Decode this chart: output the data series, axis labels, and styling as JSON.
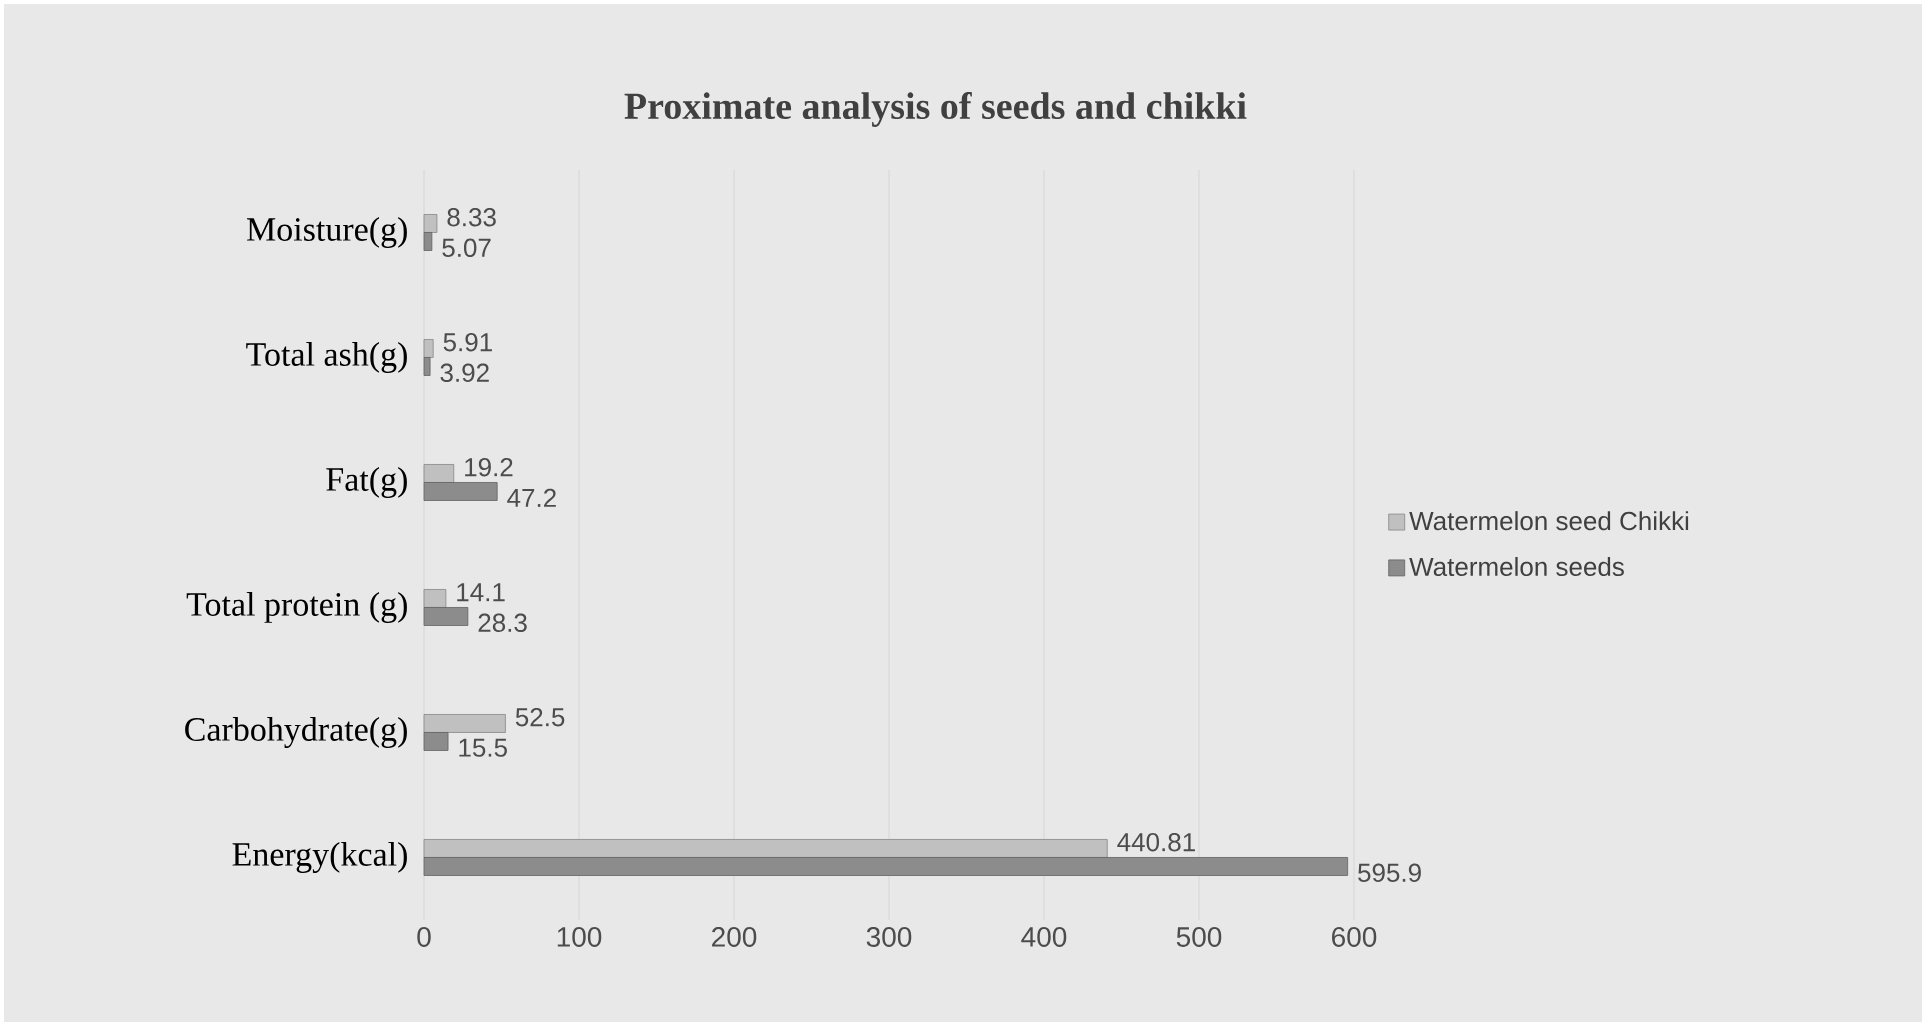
{
  "chart_data": {
    "type": "bar",
    "orientation": "horizontal",
    "title": "Proximate analysis of seeds and chikki",
    "categories": [
      "Moisture(g)",
      "Total ash(g)",
      "Fat(g)",
      "Total protein (g)",
      "Carbohydrate(g)",
      "Energy(kcal)"
    ],
    "series": [
      {
        "name": "Watermelon seed Chikki",
        "color": "#c0c0c0",
        "values": [
          8.33,
          5.91,
          19.2,
          14.1,
          52.5,
          440.81
        ]
      },
      {
        "name": "Watermelon seeds",
        "color": "#8c8c8c",
        "values": [
          5.07,
          3.92,
          47.2,
          28.3,
          15.5,
          595.9
        ]
      }
    ],
    "xlim": [
      0,
      600
    ],
    "xticks": [
      0,
      100,
      200,
      300,
      400,
      500,
      600
    ],
    "grid": "x",
    "legend": "right",
    "data_labels": true
  }
}
